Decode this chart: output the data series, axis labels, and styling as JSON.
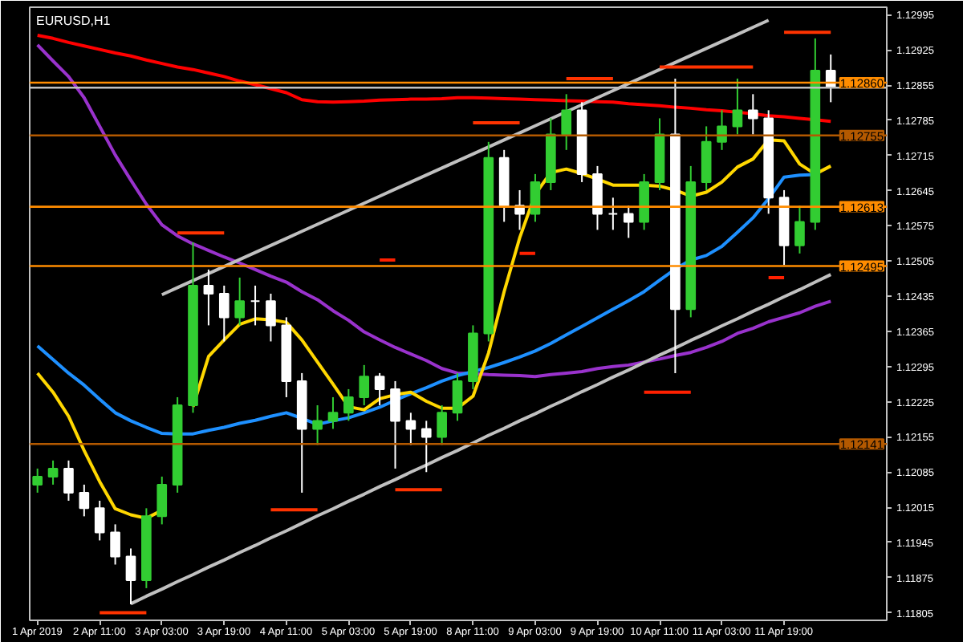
{
  "chart_data": {
    "type": "candlestick",
    "title": "EURUSD,H1",
    "categories": [
      "1 Apr 2019",
      null,
      null,
      null,
      "2 Apr 11:00",
      null,
      null,
      null,
      "3 Apr 03:00",
      null,
      null,
      null,
      "3 Apr 19:00",
      null,
      null,
      null,
      "4 Apr 11:00",
      null,
      null,
      null,
      "5 Apr 03:00",
      null,
      null,
      null,
      "5 Apr 19:00",
      null,
      null,
      null,
      "8 Apr 11:00",
      null,
      null,
      null,
      "9 Apr 03:00",
      null,
      null,
      null,
      "9 Apr 19:00",
      null,
      null,
      null,
      "10 Apr 11:00",
      null,
      null,
      null,
      "11 Apr 03:00",
      null,
      null,
      null,
      "11 Apr 19:00",
      null,
      null,
      null
    ],
    "ohlc": [
      [
        1.1206,
        1.12092,
        1.12044,
        1.12076
      ],
      [
        1.12076,
        1.12108,
        1.1206,
        1.12092
      ],
      [
        1.12092,
        1.12108,
        1.12028,
        1.12044
      ],
      [
        1.12044,
        1.1206,
        1.11997,
        1.12013
      ],
      [
        1.12013,
        1.12028,
        1.11949,
        1.11965
      ],
      [
        1.11965,
        1.11981,
        1.11901,
        1.11917
      ],
      [
        1.11917,
        1.11933,
        1.11822,
        1.1187
      ],
      [
        1.1187,
        1.12013,
        1.11854,
        1.11997
      ],
      [
        1.11997,
        1.12076,
        1.11981,
        1.1206
      ],
      [
        1.1206,
        1.12234,
        1.12044,
        1.12218
      ],
      [
        1.12218,
        1.12542,
        1.12203,
        1.12456
      ],
      [
        1.12456,
        1.12488,
        1.12377,
        1.1244
      ],
      [
        1.1244,
        1.12456,
        1.12345,
        1.12393
      ],
      [
        1.12393,
        1.12472,
        1.12377,
        1.12425
      ],
      [
        1.12425,
        1.12456,
        1.12377,
        1.12425
      ],
      [
        1.12425,
        1.1244,
        1.12345,
        1.12377
      ],
      [
        1.12377,
        1.12393,
        1.12234,
        1.12266
      ],
      [
        1.12266,
        1.12282,
        1.12044,
        1.12171
      ],
      [
        1.12171,
        1.12218,
        1.12139,
        1.12187
      ],
      [
        1.12187,
        1.12234,
        1.12171,
        1.12203
      ],
      [
        1.12203,
        1.1225,
        1.12187,
        1.12234
      ],
      [
        1.12234,
        1.12298,
        1.12218,
        1.12275
      ],
      [
        1.12275,
        1.12282,
        1.12218,
        1.1225
      ],
      [
        1.1225,
        1.12266,
        1.12092,
        1.12187
      ],
      [
        1.12187,
        1.12203,
        1.12139,
        1.12171
      ],
      [
        1.12171,
        1.12187,
        1.12085,
        1.12155
      ],
      [
        1.12155,
        1.12218,
        1.12139,
        1.12203
      ],
      [
        1.12203,
        1.12282,
        1.12187,
        1.12266
      ],
      [
        1.12266,
        1.12377,
        1.1225,
        1.12361
      ],
      [
        1.12361,
        1.12742,
        1.12345,
        1.1271
      ],
      [
        1.1271,
        1.12726,
        1.12583,
        1.12615
      ],
      [
        1.12615,
        1.12646,
        1.12567,
        1.12599
      ],
      [
        1.12599,
        1.12678,
        1.12583,
        1.12662
      ],
      [
        1.12662,
        1.12789,
        1.12646,
        1.12757
      ],
      [
        1.12757,
        1.12837,
        1.12726,
        1.12805
      ],
      [
        1.12805,
        1.12821,
        1.12662,
        1.12678
      ],
      [
        1.12678,
        1.12694,
        1.12567,
        1.12599
      ],
      [
        1.12599,
        1.12631,
        1.12567,
        1.12599
      ],
      [
        1.12599,
        1.12615,
        1.12551,
        1.12583
      ],
      [
        1.12583,
        1.12678,
        1.12567,
        1.12662
      ],
      [
        1.12662,
        1.12789,
        1.12646,
        1.12757
      ],
      [
        1.12757,
        1.12868,
        1.12282,
        1.12409
      ],
      [
        1.12409,
        1.12694,
        1.12393,
        1.12662
      ],
      [
        1.12662,
        1.12773,
        1.12646,
        1.12742
      ],
      [
        1.12742,
        1.12805,
        1.12726,
        1.12773
      ],
      [
        1.12773,
        1.12868,
        1.12757,
        1.12805
      ],
      [
        1.12805,
        1.12837,
        1.12757,
        1.12789
      ],
      [
        1.12789,
        1.12805,
        1.12599,
        1.12631
      ],
      [
        1.12631,
        1.12646,
        1.12497,
        1.12536
      ],
      [
        1.12536,
        1.12615,
        1.1252,
        1.12583
      ],
      [
        1.12583,
        1.12948,
        1.12567,
        1.12884
      ],
      [
        1.12884,
        1.12916,
        1.12821,
        1.12852
      ]
    ],
    "colors": [
      "#32cd32",
      "#32cd32",
      "#ffffff",
      "#ffffff",
      "#ffffff",
      "#ffffff",
      "#ffffff",
      "#32cd32",
      "#32cd32",
      "#32cd32",
      "#32cd32",
      "#ffffff",
      "#ffffff",
      "#32cd32",
      "#ffffff",
      "#ffffff",
      "#ffffff",
      "#ffffff",
      "#32cd32",
      "#32cd32",
      "#32cd32",
      "#32cd32",
      "#ffffff",
      "#ffffff",
      "#ffffff",
      "#ffffff",
      "#32cd32",
      "#32cd32",
      "#32cd32",
      "#32cd32",
      "#ffffff",
      "#ffffff",
      "#32cd32",
      "#32cd32",
      "#32cd32",
      "#ffffff",
      "#ffffff",
      "#ffffff",
      "#ffffff",
      "#32cd32",
      "#32cd32",
      "#ffffff",
      "#32cd32",
      "#32cd32",
      "#32cd32",
      "#32cd32",
      "#ffffff",
      "#ffffff",
      "#ffffff",
      "#32cd32",
      "#32cd32",
      "#ffffff"
    ],
    "series": [
      {
        "type": "line",
        "color": "#ff0000",
        "values": [
          1.12954,
          1.12948,
          1.1294,
          1.12933,
          1.12926,
          1.12919,
          1.12913,
          1.12905,
          1.12898,
          1.12891,
          1.12886,
          1.12879,
          1.12872,
          1.12863,
          1.12856,
          1.12848,
          1.1284,
          1.12826,
          1.12822,
          1.12821,
          1.12822,
          1.12823,
          1.12825,
          1.12826,
          1.12827,
          1.12827,
          1.12828,
          1.1283,
          1.1283,
          1.12829,
          1.12828,
          1.12827,
          1.12826,
          1.12825,
          1.12824,
          1.12823,
          1.12822,
          1.12821,
          1.12818,
          1.12816,
          1.12814,
          1.12811,
          1.12809,
          1.12806,
          1.12804,
          1.12801,
          1.12798,
          1.12794,
          1.12792,
          1.12789,
          1.12786,
          1.12783
        ]
      },
      {
        "type": "line",
        "color": "#9932cc",
        "values": [
          1.12935,
          1.12903,
          1.12872,
          1.1283,
          1.12773,
          1.12716,
          1.12666,
          1.12618,
          1.12577,
          1.12555,
          1.12539,
          1.12526,
          1.12513,
          1.12501,
          1.12488,
          1.12475,
          1.12463,
          1.12444,
          1.12428,
          1.12406,
          1.12387,
          1.12364,
          1.12348,
          1.12333,
          1.1232,
          1.12307,
          1.12291,
          1.12282,
          1.12281,
          1.12279,
          1.12278,
          1.12277,
          1.12275,
          1.12279,
          1.12282,
          1.12285,
          1.12291,
          1.12295,
          1.12298,
          1.12304,
          1.1231,
          1.12317,
          1.12323,
          1.12333,
          1.12345,
          1.12361,
          1.12371,
          1.12384,
          1.12393,
          1.12402,
          1.12415,
          1.12425
        ]
      },
      {
        "type": "line",
        "color": "#1e90ff",
        "values": [
          1.12336,
          1.12309,
          1.12282,
          1.12258,
          1.1223,
          1.12203,
          1.12187,
          1.12174,
          1.12162,
          1.12161,
          1.12161,
          1.12168,
          1.12174,
          1.12182,
          1.12188,
          1.12196,
          1.12203,
          1.12192,
          1.1218,
          1.12187,
          1.12193,
          1.12203,
          1.12214,
          1.12228,
          1.12241,
          1.12253,
          1.12266,
          1.12277,
          1.12285,
          1.12293,
          1.12303,
          1.12314,
          1.12326,
          1.12341,
          1.12358,
          1.12375,
          1.12392,
          1.12409,
          1.12426,
          1.12444,
          1.12467,
          1.12489,
          1.12507,
          1.12516,
          1.12534,
          1.12562,
          1.12591,
          1.12629,
          1.12672,
          1.12676,
          1.12677,
          null
        ]
      },
      {
        "type": "line",
        "color": "#ffd700",
        "values": [
          1.12282,
          1.12244,
          1.12196,
          1.12128,
          1.12066,
          1.12012,
          1.12,
          1.11993,
          1.12009,
          null,
          1.12215,
          1.12315,
          1.12348,
          1.12379,
          1.1239,
          1.12388,
          1.12383,
          1.12348,
          1.12304,
          1.1226,
          1.12215,
          1.12209,
          1.12231,
          1.12239,
          1.12244,
          1.12226,
          1.12212,
          1.12212,
          1.12236,
          1.12322,
          1.12444,
          1.12551,
          1.12638,
          1.12681,
          1.12688,
          1.12679,
          1.12668,
          1.12656,
          1.12656,
          1.12656,
          1.12654,
          1.12646,
          1.12634,
          1.12642,
          1.12662,
          1.12692,
          1.12708,
          1.12746,
          1.12744,
          1.12698,
          1.12678,
          1.12694
        ]
      },
      {
        "type": "line",
        "color": "#c0c0c0",
        "values": [
          null,
          null,
          null,
          null,
          null,
          null,
          null,
          null,
          1.12438,
          1.12452,
          1.12466,
          1.1248,
          1.12494,
          1.12508,
          1.12522,
          1.12536,
          1.1255,
          1.12564,
          1.12578,
          1.12592,
          1.12606,
          1.1262,
          1.12634,
          1.12648,
          1.12662,
          1.12676,
          1.1269,
          1.12704,
          1.12718,
          1.12732,
          1.12746,
          1.1276,
          1.12774,
          1.12788,
          1.12802,
          1.12816,
          1.1283,
          1.12844,
          1.12858,
          1.12872,
          1.12886,
          1.129,
          1.12914,
          1.12928,
          1.12942,
          1.12956,
          1.1297,
          1.12984,
          null,
          null,
          null,
          null
        ]
      },
      {
        "type": "line",
        "color": "#c0c0c0",
        "values": [
          null,
          null,
          null,
          null,
          null,
          null,
          1.11823,
          1.11838,
          1.11852,
          1.11867,
          1.11881,
          1.11896,
          1.1191,
          1.11925,
          1.11939,
          1.11954,
          1.11968,
          1.11983,
          1.11998,
          1.12012,
          1.12027,
          1.12041,
          1.12056,
          1.1207,
          1.12085,
          1.12099,
          1.12114,
          1.12128,
          1.12143,
          1.12158,
          1.12172,
          1.12187,
          1.12201,
          1.12216,
          1.1223,
          1.12245,
          1.12259,
          1.12274,
          1.12288,
          1.12303,
          1.12318,
          1.12332,
          1.12347,
          1.12361,
          1.12376,
          1.1239,
          1.12405,
          1.12419,
          1.12434,
          1.12448,
          1.12463,
          1.12478
        ]
      },
      {
        "type": "line",
        "color": "#ff3300",
        "values": [
          null,
          null,
          null,
          null,
          1.11805,
          1.11805,
          1.11805,
          1.11805,
          null,
          1.12561,
          1.12561,
          1.12561,
          1.12561,
          null,
          null,
          1.1201,
          1.1201,
          1.1201,
          1.1201,
          null,
          null,
          null,
          null,
          1.1205,
          1.1205,
          1.1205,
          1.1205,
          null,
          1.1278,
          1.1278,
          1.1278,
          1.1278,
          null,
          null,
          1.12868,
          1.12868,
          1.12868,
          1.12868,
          null,
          null,
          1.12891,
          1.12891,
          1.12891,
          1.12891,
          1.12891,
          1.12891,
          1.12891,
          null,
          1.1296,
          1.1296,
          1.1296,
          1.1296
        ]
      },
      {
        "type": "line",
        "color": "#ff2000",
        "values": [
          null,
          null,
          null,
          null,
          null,
          null,
          null,
          null,
          null,
          null,
          null,
          null,
          null,
          null,
          null,
          null,
          null,
          null,
          null,
          null,
          null,
          null,
          1.12507,
          1.12507,
          null,
          null,
          null,
          null,
          null,
          null,
          null,
          1.1252,
          1.1252,
          null,
          null,
          null,
          null,
          null,
          null,
          1.12244,
          1.12244,
          1.12244,
          1.12244,
          null,
          null,
          null,
          null,
          1.12472,
          1.12472,
          null,
          null,
          null
        ]
      }
    ],
    "ref_lines": [
      {
        "axis": "y",
        "value": 1.1285,
        "color": "#c0c0c0"
      },
      {
        "axis": "y",
        "value": 1.1286,
        "label": "1.12860",
        "color": "#ff8c00"
      },
      {
        "axis": "y",
        "value": 1.12755,
        "label": "1.12755",
        "color": "#b35900"
      },
      {
        "axis": "y",
        "value": 1.12613,
        "label": "1.12613",
        "color": "#ff8c00"
      },
      {
        "axis": "y",
        "value": 1.12495,
        "label": "1.12495",
        "color": "#ff8c00"
      },
      {
        "axis": "y",
        "value": 1.12141,
        "label": "1.12141",
        "color": "#b35900"
      }
    ],
    "ylim": [
      1.1179,
      1.1301
    ],
    "yticks": [
      1.11805,
      1.11875,
      1.11945,
      1.12015,
      1.12085,
      1.12155,
      1.12225,
      1.12295,
      1.12365,
      1.12435,
      1.12505,
      1.12575,
      1.12645,
      1.12715,
      1.12785,
      1.12855,
      1.12925,
      1.12995
    ],
    "grid": false,
    "marker": "none",
    "line_style": "solid"
  }
}
